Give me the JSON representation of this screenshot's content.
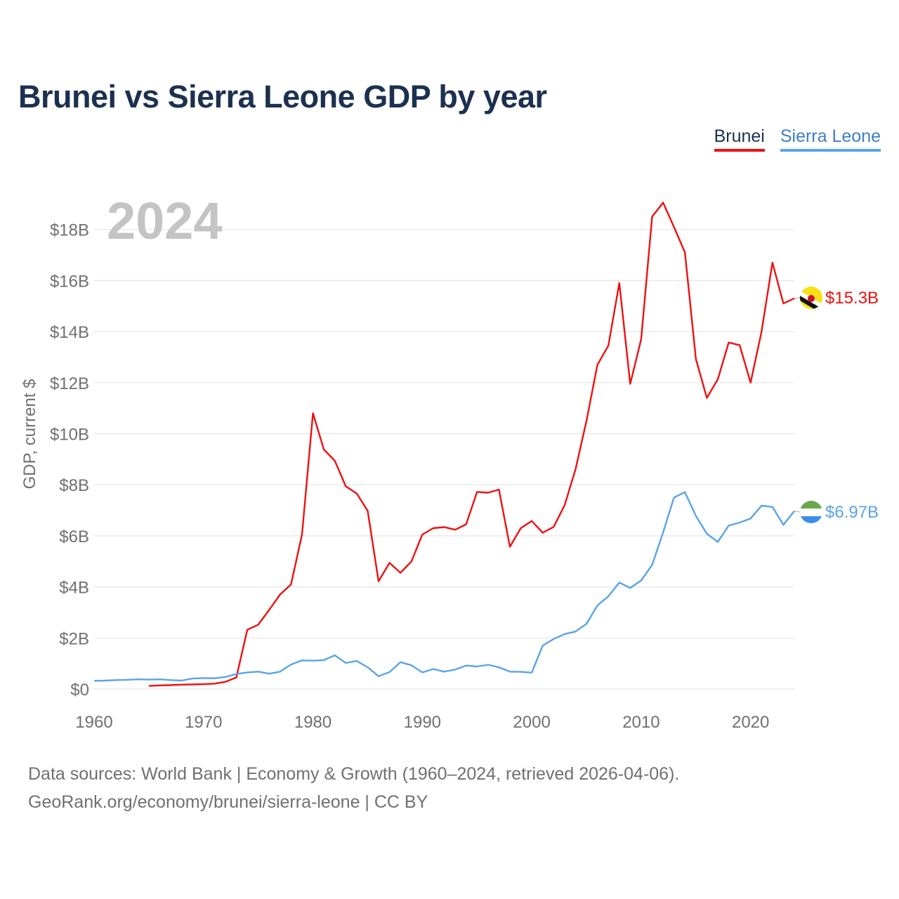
{
  "title": "Brunei vs Sierra Leone GDP by year",
  "legend": {
    "brunei": "Brunei",
    "sierra_leone": "Sierra Leone"
  },
  "year_label": "2024",
  "footer": {
    "line1": "Data sources: World Bank | Economy & Growth (1960–2024, retrieved 2026-04-06).",
    "line2": "GeoRank.org/economy/brunei/sierra-leone | CC BY"
  },
  "chart_data": {
    "type": "line",
    "title": "Brunei vs Sierra Leone GDP by year",
    "xlabel": "",
    "ylabel": "GDP, current $",
    "xlim": [
      1960,
      2024
    ],
    "ylim": [
      0,
      18.5
    ],
    "x_ticks": [
      1960,
      1970,
      1980,
      1990,
      2000,
      2010,
      2020
    ],
    "x_tick_labels": [
      "1960",
      "1970",
      "1980",
      "1990",
      "2000",
      "2010",
      "2020"
    ],
    "y_ticks": [
      0,
      2,
      4,
      6,
      8,
      10,
      12,
      14,
      16,
      18
    ],
    "y_tick_labels": [
      "$0",
      "$2B",
      "$4B",
      "$6B",
      "$8B",
      "$10B",
      "$12B",
      "$14B",
      "$16B",
      "$18B"
    ],
    "grid": true,
    "legend_position": "top-right",
    "series": [
      {
        "name": "Brunei",
        "color": "#ee1111",
        "end_label": "$15.3B",
        "x": [
          1965,
          1966,
          1967,
          1968,
          1969,
          1970,
          1971,
          1972,
          1973,
          1974,
          1975,
          1976,
          1977,
          1978,
          1979,
          1980,
          1981,
          1982,
          1983,
          1984,
          1985,
          1986,
          1987,
          1988,
          1989,
          1990,
          1991,
          1992,
          1993,
          1994,
          1995,
          1996,
          1997,
          1998,
          1999,
          2000,
          2001,
          2002,
          2003,
          2004,
          2005,
          2006,
          2007,
          2008,
          2009,
          2010,
          2011,
          2012,
          2013,
          2014,
          2015,
          2016,
          2017,
          2018,
          2019,
          2020,
          2021,
          2022,
          2023,
          2024
        ],
        "values": [
          0.12,
          0.14,
          0.15,
          0.17,
          0.18,
          0.19,
          0.21,
          0.28,
          0.45,
          2.32,
          2.52,
          3.1,
          3.7,
          4.1,
          6.05,
          10.8,
          9.38,
          8.94,
          7.94,
          7.66,
          6.98,
          4.22,
          4.94,
          4.55,
          5.0,
          6.05,
          6.3,
          6.34,
          6.24,
          6.45,
          7.72,
          7.69,
          7.81,
          5.57,
          6.3,
          6.58,
          6.12,
          6.35,
          7.2,
          8.6,
          10.5,
          12.7,
          13.45,
          15.9,
          11.95,
          13.7,
          18.5,
          19.05,
          18.1,
          17.1,
          12.93,
          11.4,
          12.13,
          13.57,
          13.47,
          12.0,
          14.0,
          16.7,
          15.1,
          15.3
        ]
      },
      {
        "name": "Sierra Leone",
        "color": "#5aa4e6",
        "end_label": "$6.97B",
        "x": [
          1960,
          1961,
          1962,
          1963,
          1964,
          1965,
          1966,
          1967,
          1968,
          1969,
          1970,
          1971,
          1972,
          1973,
          1974,
          1975,
          1976,
          1977,
          1978,
          1979,
          1980,
          1981,
          1982,
          1983,
          1984,
          1985,
          1986,
          1987,
          1988,
          1989,
          1990,
          1991,
          1992,
          1993,
          1994,
          1995,
          1996,
          1997,
          1998,
          1999,
          2000,
          2001,
          2002,
          2003,
          2004,
          2005,
          2006,
          2007,
          2008,
          2009,
          2010,
          2011,
          2012,
          2013,
          2014,
          2015,
          2016,
          2017,
          2018,
          2019,
          2020,
          2021,
          2022,
          2023,
          2024
        ],
        "values": [
          0.32,
          0.33,
          0.35,
          0.36,
          0.38,
          0.37,
          0.38,
          0.35,
          0.33,
          0.41,
          0.43,
          0.42,
          0.47,
          0.59,
          0.65,
          0.68,
          0.6,
          0.68,
          0.96,
          1.12,
          1.11,
          1.13,
          1.32,
          1.02,
          1.1,
          0.85,
          0.5,
          0.66,
          1.05,
          0.93,
          0.65,
          0.78,
          0.68,
          0.76,
          0.92,
          0.88,
          0.95,
          0.85,
          0.68,
          0.67,
          0.64,
          1.7,
          1.96,
          2.15,
          2.25,
          2.55,
          3.27,
          3.63,
          4.17,
          3.96,
          4.25,
          4.86,
          6.13,
          7.5,
          7.71,
          6.78,
          6.08,
          5.76,
          6.4,
          6.52,
          6.68,
          7.18,
          7.13,
          6.43,
          6.97
        ]
      }
    ]
  }
}
